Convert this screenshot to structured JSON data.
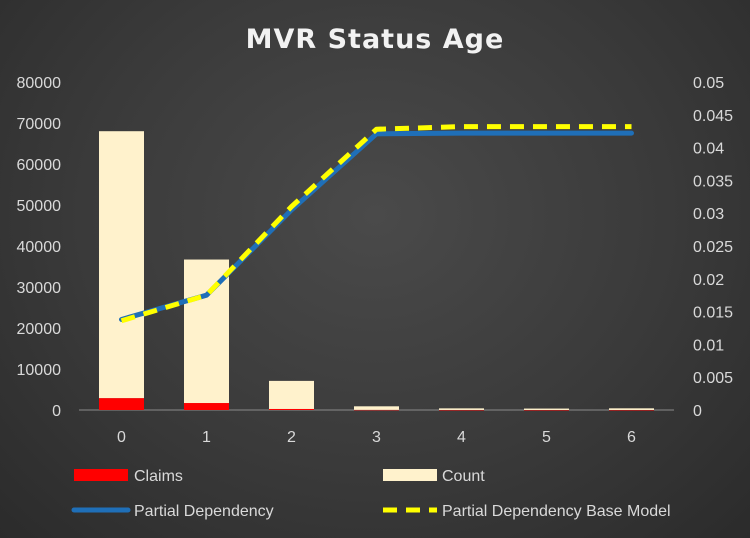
{
  "chart_data": {
    "type": "bar",
    "title": "MVR Status Age",
    "categories": [
      "0",
      "1",
      "2",
      "3",
      "4",
      "5",
      "6"
    ],
    "series": [
      {
        "name": "Claims",
        "kind": "bar-stacked",
        "axis": "left",
        "color": "#ff0000",
        "values": [
          2900,
          1700,
          250,
          40,
          15,
          10,
          10
        ]
      },
      {
        "name": "Count",
        "kind": "bar-stacked",
        "axis": "left",
        "color": "#fff2cc",
        "values": [
          65100,
          35000,
          6850,
          860,
          385,
          340,
          400
        ]
      },
      {
        "name": "Partial Dependency",
        "kind": "line",
        "axis": "right",
        "color": "#1f6fb8",
        "values": [
          0.0138,
          0.0175,
          0.0305,
          0.0421,
          0.0422,
          0.0422,
          0.0422
        ]
      },
      {
        "name": "Partial Dependency Base Model",
        "kind": "line-dashed",
        "axis": "right",
        "color": "#ffff00",
        "values": [
          0.0136,
          0.0175,
          0.031,
          0.0428,
          0.0432,
          0.0432,
          0.0432
        ]
      }
    ],
    "y_left": {
      "ylim": [
        0,
        80000
      ],
      "ticks": [
        "80000",
        "70000",
        "60000",
        "50000",
        "40000",
        "30000",
        "20000",
        "10000",
        "0"
      ]
    },
    "y_right": {
      "ylim": [
        0,
        0.05
      ],
      "ticks": [
        "0.05",
        "0.045",
        "0.04",
        "0.035",
        "0.03",
        "0.025",
        "0.02",
        "0.015",
        "0.01",
        "0.005",
        "0"
      ]
    },
    "xlabel": "",
    "ylabel": "",
    "grid": false,
    "legend_position": "bottom"
  }
}
